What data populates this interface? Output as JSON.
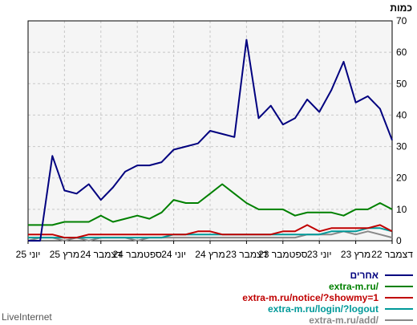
{
  "chart_data": {
    "type": "line",
    "ylabel": "כמות",
    "ylim": [
      0,
      70
    ],
    "yticks": [
      0,
      10,
      20,
      30,
      40,
      50,
      60,
      70
    ],
    "grid": true,
    "x_direction": "right-to-left",
    "xticks": [
      {
        "label": "דצמבר 22",
        "index": 0
      },
      {
        "label": "מרץ 23",
        "index": 3
      },
      {
        "label": "יוני 23",
        "index": 6
      },
      {
        "label": "ספטמבר 23",
        "index": 9
      },
      {
        "label": "דצמבר 23",
        "index": 12
      },
      {
        "label": "מרץ 24",
        "index": 15
      },
      {
        "label": "יוני 24",
        "index": 18
      },
      {
        "label": "ספטמבר 24",
        "index": 21
      },
      {
        "label": "דצמבר 24",
        "index": 24
      },
      {
        "label": "מרץ 25",
        "index": 27
      },
      {
        "label": "יוני 25",
        "index": 30
      }
    ],
    "series": [
      {
        "name": "אחרים",
        "color": "#00007f",
        "values": [
          32,
          42,
          46,
          44,
          57,
          48,
          41,
          45,
          39,
          37,
          43,
          39,
          64,
          33,
          34,
          35,
          31,
          30,
          29,
          25,
          24,
          24,
          22,
          17,
          13,
          18,
          15,
          16,
          27,
          0,
          0
        ]
      },
      {
        "name": "extra-m.ru/",
        "color": "#008000",
        "values": [
          10,
          12,
          10,
          10,
          8,
          9,
          9,
          9,
          8,
          10,
          10,
          10,
          12,
          15,
          18,
          15,
          12,
          12,
          13,
          9,
          7,
          8,
          7,
          6,
          8,
          6,
          6,
          6,
          5,
          5,
          5
        ]
      },
      {
        "name": "extra-m.ru/notice/?showmy=1",
        "color": "#c00000",
        "values": [
          3,
          5,
          4,
          4,
          4,
          4,
          3,
          5,
          3,
          3,
          2,
          2,
          2,
          2,
          2,
          3,
          3,
          2,
          2,
          2,
          2,
          2,
          2,
          2,
          2,
          2,
          1,
          1,
          2,
          2,
          2
        ]
      },
      {
        "name": "extra-m.ru/login/?logout",
        "color": "#009999",
        "values": [
          3,
          4,
          4,
          3,
          3,
          3,
          2,
          2,
          2,
          2,
          2,
          2,
          2,
          2,
          2,
          2,
          2,
          2,
          2,
          1,
          1,
          1,
          1,
          1,
          1,
          1,
          1,
          1,
          1,
          1,
          1
        ]
      },
      {
        "name": "extra-m.ru/add/",
        "color": "#888888",
        "values": [
          1,
          2,
          3,
          2,
          3,
          2,
          2,
          2,
          1,
          1,
          1,
          1,
          1,
          1,
          1,
          1,
          1,
          1,
          1,
          1,
          1,
          0,
          1,
          1,
          1,
          0,
          1,
          0,
          1,
          1,
          0
        ]
      }
    ]
  },
  "credit": "LiveInternet"
}
